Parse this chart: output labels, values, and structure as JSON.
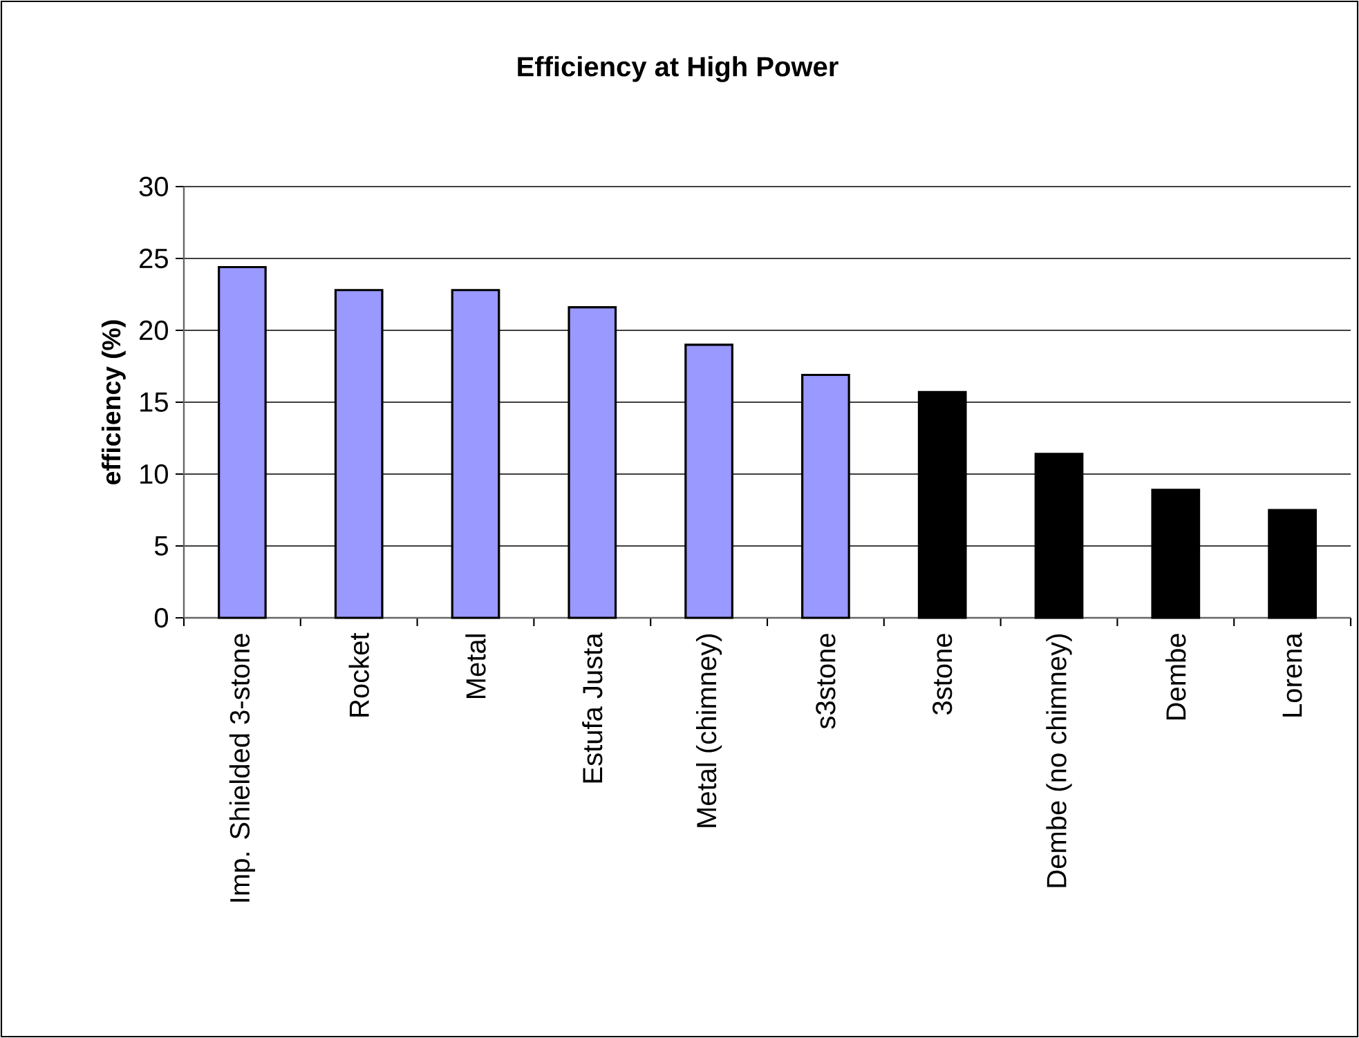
{
  "chart_data": {
    "type": "bar",
    "title": "Efficiency at High Power",
    "ylabel": "efficiency (%)",
    "categories": [
      "Imp. Shielded 3-stone",
      "Rocket",
      "Metal",
      "Estufa Justa",
      "Metal (chimney)",
      "s3stone",
      "3stone",
      "Dembe (no chimney)",
      "Dembe",
      "Lorena"
    ],
    "values": [
      24.4,
      22.8,
      22.8,
      21.6,
      19.0,
      16.9,
      15.7,
      11.4,
      8.9,
      7.5
    ],
    "colors": [
      "#9999ff",
      "#9999ff",
      "#9999ff",
      "#9999ff",
      "#9999ff",
      "#9999ff",
      "#000000",
      "#000000",
      "#000000",
      "#000000"
    ],
    "ylim": [
      0,
      30
    ],
    "yticks": [
      0,
      5,
      10,
      15,
      20,
      25,
      30
    ],
    "grid": "y"
  }
}
